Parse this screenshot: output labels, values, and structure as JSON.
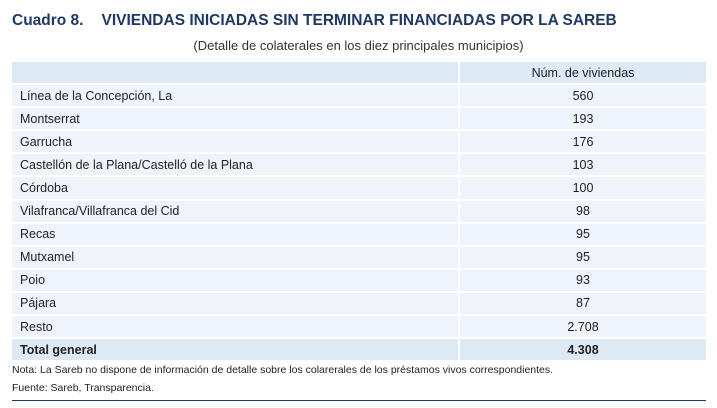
{
  "title": {
    "number": "Cuadro 8.",
    "text": "VIVIENDAS INICIADAS SIN TERMINAR FINANCIADAS POR LA SAREB"
  },
  "subtitle": "(Detalle de colaterales en los diez principales municipios)",
  "table": {
    "column_header": "Núm. de viviendas",
    "rows": [
      {
        "name": "Línea de la Concepción, La",
        "value": "560"
      },
      {
        "name": "Montserrat",
        "value": "193"
      },
      {
        "name": "Garrucha",
        "value": "176"
      },
      {
        "name": "Castellón de la Plana/Castelló de la Plana",
        "value": "103"
      },
      {
        "name": "Córdoba",
        "value": "100"
      },
      {
        "name": "Vilafranca/Villafranca del Cid",
        "value": "98"
      },
      {
        "name": "Recas",
        "value": "95"
      },
      {
        "name": "Mutxamel",
        "value": "95"
      },
      {
        "name": "Poio",
        "value": "93"
      },
      {
        "name": "Pájara",
        "value": "87"
      },
      {
        "name": "Resto",
        "value": "2.708"
      }
    ],
    "total": {
      "name": "Total general",
      "value": "4.308"
    }
  },
  "note": "Nota: La Sareb no dispone de información de detalle sobre los colarerales de los préstamos vivos correspondientes.",
  "source": "Fuente: Sareb, Transparencia.",
  "colors": {
    "title": "#1f3864",
    "header_bg": "#dde9f5",
    "row_bg": "#eef4fa"
  }
}
